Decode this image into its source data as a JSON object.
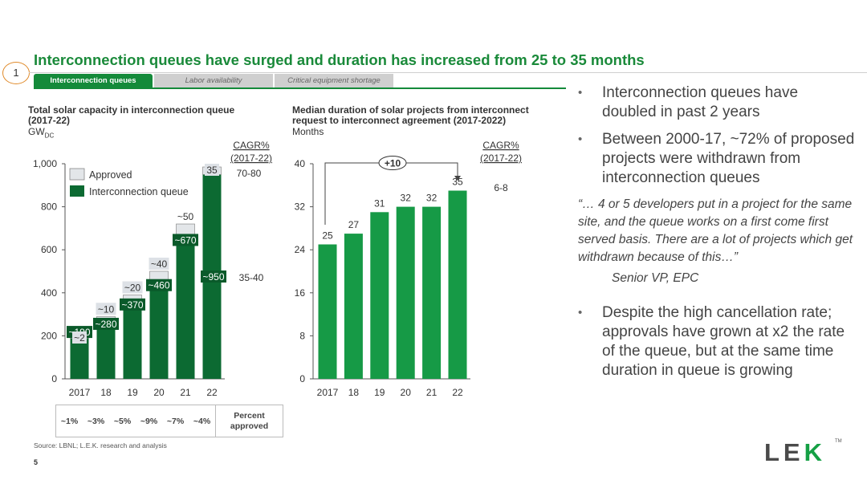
{
  "page": {
    "title": "Interconnection queues have surged and duration has increased from 25 to 35 months",
    "section_number": "1",
    "page_number": "5",
    "source": "Source: LBNL; L.E.K. research and analysis",
    "logo": {
      "text_left": "LE",
      "text_k": "K",
      "tm": "TM"
    }
  },
  "tabs": [
    {
      "label": "Interconnection queues",
      "active": true
    },
    {
      "label": "Labor availability",
      "active": false
    },
    {
      "label": "Critical equipment shortage",
      "active": false
    }
  ],
  "colors": {
    "accent": "#148a3a",
    "dark_green": "#0c6a32",
    "approved_fill": "#e3e6e9",
    "bar_green": "#169a46"
  },
  "chart_data": [
    {
      "type": "bar",
      "stacked": true,
      "title_lines": [
        "Total solar capacity in interconnection queue",
        "(2017-22)"
      ],
      "unit": "GW",
      "unit_sub": "DC",
      "categories": [
        "2017",
        "18",
        "19",
        "20",
        "21",
        "22"
      ],
      "ylim": [
        0,
        1000
      ],
      "yticks": [
        "0",
        "200",
        "400",
        "600",
        "800",
        "1,000"
      ],
      "series": [
        {
          "name": "Interconnection queue",
          "values": [
            190,
            280,
            370,
            460,
            670,
            950
          ],
          "labels": [
            "~190",
            "~280",
            "~370",
            "~460",
            "~670",
            "~950"
          ]
        },
        {
          "name": "Approved",
          "values": [
            2,
            10,
            20,
            40,
            50,
            35
          ],
          "labels": [
            "~2",
            "~10",
            "~20",
            "~40",
            "~50",
            "35"
          ]
        }
      ],
      "cagr_header": [
        "CAGR%",
        "(2017-22)"
      ],
      "cagr": {
        "approved": "70-80",
        "queue": "35-40"
      },
      "percent_approved": [
        "~1%",
        "~3%",
        "~5%",
        "~9%",
        "~7%",
        "~4%"
      ],
      "percent_header": [
        "Percent",
        "approved"
      ]
    },
    {
      "type": "bar",
      "title_lines": [
        "Median duration of solar projects from interconnect",
        "request to interconnect agreement (2017-2022)"
      ],
      "subtitle": "Months",
      "categories": [
        "2017",
        "18",
        "19",
        "20",
        "21",
        "22"
      ],
      "values": [
        25,
        27,
        31,
        32,
        32,
        35
      ],
      "labels": [
        "25",
        "27",
        "31",
        "32",
        "32",
        "35"
      ],
      "ylim": [
        0,
        40
      ],
      "yticks": [
        "0",
        "8",
        "16",
        "24",
        "32",
        "40"
      ],
      "cagr_header": [
        "CAGR%",
        "(2017-22)"
      ],
      "cagr": "6-8",
      "delta_label": "+10"
    }
  ],
  "bullets": [
    "Interconnection queues have doubled in past 2 years",
    "Between 2000-17, ~72% of proposed projects were withdrawn from interconnection queues",
    "Despite the high cancellation rate; approvals have grown at x2 the rate of the queue, but at the same time duration in queue is growing"
  ],
  "quote": {
    "text": "“… 4 or 5 developers put in a project for the same site, and the queue works on a first come first served basis. There are a lot of projects which get withdrawn because of this…”",
    "source": "Senior VP, EPC"
  }
}
